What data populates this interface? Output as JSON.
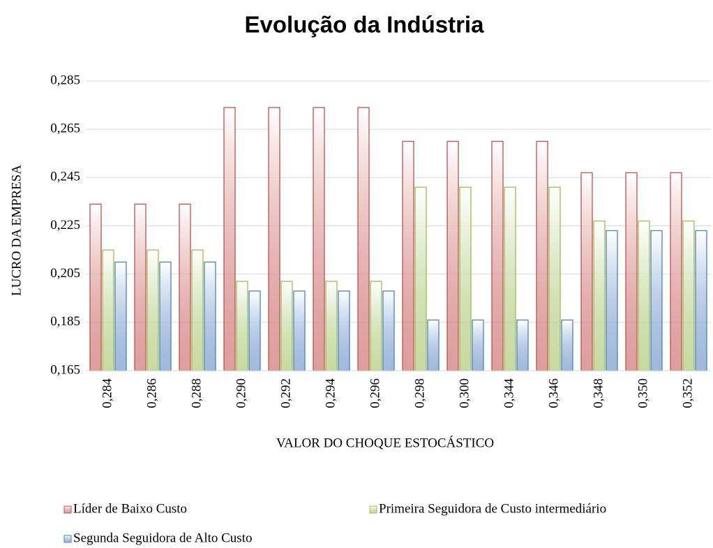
{
  "chart_data": {
    "type": "bar",
    "title": "Evolução da Indústria",
    "x_label": "VALOR DO CHOQUE ESTOCÁSTICO",
    "y_label": "LUCRO DA EMPRESA",
    "categories": [
      "0,284",
      "0,286",
      "0,288",
      "0,290",
      "0,292",
      "0,294",
      "0,296",
      "0,298",
      "0,300",
      "0,344",
      "0,346",
      "0,348",
      "0,350",
      "0,352"
    ],
    "series": [
      {
        "name": "Líder de Baixo Custo",
        "color": "#c0504d",
        "values": [
          0.234,
          0.234,
          0.234,
          0.274,
          0.274,
          0.274,
          0.274,
          0.26,
          0.26,
          0.26,
          0.26,
          0.247,
          0.247,
          0.247
        ]
      },
      {
        "name": "Primeira Seguidora de Custo intermediário",
        "color": "#9bbb59",
        "values": [
          0.215,
          0.215,
          0.215,
          0.202,
          0.202,
          0.202,
          0.202,
          0.241,
          0.241,
          0.241,
          0.241,
          0.227,
          0.227,
          0.227
        ]
      },
      {
        "name": "Segunda Seguidora de Alto Custo",
        "color": "#4f81bd",
        "values": [
          0.21,
          0.21,
          0.21,
          0.198,
          0.198,
          0.198,
          0.198,
          0.186,
          0.186,
          0.186,
          0.186,
          0.223,
          0.223,
          0.223
        ]
      }
    ],
    "ylim": [
      0.165,
      0.285
    ],
    "yticks": [
      {
        "value": 0.165,
        "label": "0,165"
      },
      {
        "value": 0.185,
        "label": "0,185"
      },
      {
        "value": 0.205,
        "label": "0,205"
      },
      {
        "value": 0.225,
        "label": "0,225"
      },
      {
        "value": 0.245,
        "label": "0,245"
      },
      {
        "value": 0.265,
        "label": "0,265"
      },
      {
        "value": 0.285,
        "label": "0,285"
      }
    ],
    "grid": true,
    "legend": "bottom"
  }
}
